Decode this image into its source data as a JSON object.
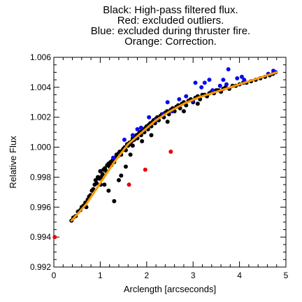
{
  "chart_data": {
    "type": "scatter",
    "title_lines": [
      "Black: High-pass filtered flux.",
      "Red: excluded outliers.",
      "Blue: excluded during thruster fire.",
      "Orange: Correction."
    ],
    "xlabel": "Arclength [arcseconds]",
    "ylabel": "Relative Flux",
    "xlim": [
      0,
      5
    ],
    "ylim": [
      0.992,
      1.006
    ],
    "x_ticks": [
      0,
      1,
      2,
      3,
      4,
      5
    ],
    "x_tick_labels": [
      "0",
      "1",
      "2",
      "3",
      "4",
      "5"
    ],
    "y_ticks": [
      0.992,
      0.994,
      0.996,
      0.998,
      1.0,
      1.002,
      1.004,
      1.006
    ],
    "y_tick_labels": [
      "0.992",
      "0.994",
      "0.996",
      "0.998",
      "1.000",
      "1.002",
      "1.004",
      "1.006"
    ],
    "grid": false,
    "series": [
      {
        "color": "#000000",
        "points": [
          [
            0.38,
            0.9951
          ],
          [
            0.42,
            0.9953
          ],
          [
            0.47,
            0.9954
          ],
          [
            0.52,
            0.9957
          ],
          [
            0.57,
            0.9958
          ],
          [
            0.6,
            0.996
          ],
          [
            0.64,
            0.9961
          ],
          [
            0.68,
            0.9963
          ],
          [
            0.7,
            0.996
          ],
          [
            0.73,
            0.9965
          ],
          [
            0.76,
            0.9967
          ],
          [
            0.79,
            0.9968
          ],
          [
            0.82,
            0.9971
          ],
          [
            0.85,
            0.9972
          ],
          [
            0.88,
            0.9975
          ],
          [
            0.9,
            0.9978
          ],
          [
            0.92,
            0.9976
          ],
          [
            0.95,
            0.998
          ],
          [
            0.98,
            0.9979
          ],
          [
            1.0,
            0.9984
          ],
          [
            1.02,
            0.998
          ],
          [
            1.05,
            0.9982
          ],
          [
            1.07,
            0.9985
          ],
          [
            1.1,
            0.9986
          ],
          [
            1.13,
            0.9984
          ],
          [
            1.15,
            0.9988
          ],
          [
            1.18,
            0.9989
          ],
          [
            1.2,
            0.9987
          ],
          [
            1.22,
            0.999
          ],
          [
            1.24,
            0.9988
          ],
          [
            1.26,
            0.9991
          ],
          [
            1.28,
            0.9992
          ],
          [
            1.3,
            0.999
          ],
          [
            1.33,
            0.9993
          ],
          [
            1.35,
            0.9995
          ],
          [
            1.38,
            0.9994
          ],
          [
            1.4,
            0.9996
          ],
          [
            1.42,
            0.9997
          ],
          [
            1.45,
            0.9995
          ],
          [
            1.48,
            0.9998
          ],
          [
            1.5,
            0.9999
          ],
          [
            1.53,
            1.0
          ],
          [
            1.55,
            0.9998
          ],
          [
            1.58,
            1.0002
          ],
          [
            1.6,
            1.0001
          ],
          [
            1.63,
            1.0003
          ],
          [
            1.65,
            1.0002
          ],
          [
            1.68,
            1.0004
          ],
          [
            1.7,
            1.0006
          ],
          [
            1.73,
            1.0005
          ],
          [
            1.75,
            1.0007
          ],
          [
            1.78,
            1.0008
          ],
          [
            1.8,
            1.0006
          ],
          [
            1.83,
            1.0009
          ],
          [
            1.85,
            1.001
          ],
          [
            1.88,
            1.0008
          ],
          [
            1.9,
            1.0011
          ],
          [
            1.93,
            1.0012
          ],
          [
            1.95,
            1.001
          ],
          [
            1.98,
            1.0013
          ],
          [
            2.0,
            1.0014
          ],
          [
            2.03,
            1.0012
          ],
          [
            2.05,
            1.0015
          ],
          [
            2.08,
            1.0016
          ],
          [
            2.1,
            1.0014
          ],
          [
            2.13,
            1.0017
          ],
          [
            2.15,
            1.0018
          ],
          [
            2.18,
            1.0016
          ],
          [
            2.2,
            1.0019
          ],
          [
            2.23,
            1.002
          ],
          [
            2.26,
            1.0018
          ],
          [
            2.3,
            1.0021
          ],
          [
            2.33,
            1.0022
          ],
          [
            2.37,
            1.002
          ],
          [
            2.4,
            1.0023
          ],
          [
            2.44,
            1.0024
          ],
          [
            2.48,
            1.0022
          ],
          [
            2.52,
            1.0025
          ],
          [
            2.56,
            1.0026
          ],
          [
            2.6,
            1.0024
          ],
          [
            2.64,
            1.0027
          ],
          [
            2.68,
            1.0028
          ],
          [
            2.72,
            1.0026
          ],
          [
            2.76,
            1.0029
          ],
          [
            2.8,
            1.003
          ],
          [
            2.85,
            1.0028
          ],
          [
            2.9,
            1.0031
          ],
          [
            2.95,
            1.0032
          ],
          [
            3.0,
            1.003
          ],
          [
            3.05,
            1.0033
          ],
          [
            3.1,
            1.0034
          ],
          [
            3.15,
            1.0032
          ],
          [
            3.2,
            1.0035
          ],
          [
            3.25,
            1.0035
          ],
          [
            3.3,
            1.0034
          ],
          [
            3.35,
            1.0036
          ],
          [
            3.4,
            1.0037
          ],
          [
            3.45,
            1.0036
          ],
          [
            3.5,
            1.0038
          ],
          [
            3.55,
            1.0038
          ],
          [
            3.6,
            1.0037
          ],
          [
            3.65,
            1.0039
          ],
          [
            3.7,
            1.004
          ],
          [
            3.78,
            1.0039
          ],
          [
            3.85,
            1.0041
          ],
          [
            3.92,
            1.0041
          ],
          [
            4.0,
            1.0042
          ],
          [
            4.08,
            1.0043
          ],
          [
            4.15,
            1.0043
          ],
          [
            4.25,
            1.0044
          ],
          [
            4.35,
            1.0045
          ],
          [
            4.45,
            1.0046
          ],
          [
            4.55,
            1.0047
          ],
          [
            4.65,
            1.0048
          ],
          [
            4.72,
            1.0049
          ],
          [
            0.95,
            0.998
          ],
          [
            1.01,
            0.9975
          ],
          [
            1.09,
            0.9975
          ],
          [
            1.18,
            0.9971
          ],
          [
            1.3,
            0.9964
          ],
          [
            1.45,
            0.9981
          ],
          [
            1.55,
            0.9987
          ],
          [
            1.7,
            1.0001
          ],
          [
            1.9,
            1.0004
          ],
          [
            2.1,
            1.0008
          ],
          [
            2.45,
            1.0017
          ],
          [
            2.8,
            1.0024
          ],
          [
            3.1,
            1.0029
          ],
          [
            1.4,
            0.9978
          ],
          [
            1.65,
            0.9995
          ]
        ]
      },
      {
        "color": "#e8000b",
        "points": [
          [
            0.02,
            0.994
          ],
          [
            1.62,
            0.9975
          ],
          [
            1.97,
            0.9985
          ],
          [
            2.52,
            0.9997
          ]
        ]
      },
      {
        "color": "#0a0aee",
        "points": [
          [
            1.28,
            0.9993
          ],
          [
            1.52,
            1.0005
          ],
          [
            1.7,
            1.0008
          ],
          [
            1.8,
            1.0012
          ],
          [
            1.88,
            1.0013
          ],
          [
            2.05,
            1.002
          ],
          [
            2.2,
            1.0018
          ],
          [
            2.35,
            1.0022
          ],
          [
            2.45,
            1.003
          ],
          [
            2.55,
            1.0024
          ],
          [
            2.7,
            1.0032
          ],
          [
            2.85,
            1.0034
          ],
          [
            3.0,
            1.0031
          ],
          [
            3.05,
            1.0043
          ],
          [
            3.18,
            1.004
          ],
          [
            3.25,
            1.0043
          ],
          [
            3.35,
            1.0045
          ],
          [
            3.42,
            1.0038
          ],
          [
            3.58,
            1.0041
          ],
          [
            3.65,
            1.0045
          ],
          [
            3.72,
            1.0042
          ],
          [
            3.76,
            1.0052
          ],
          [
            3.95,
            1.0046
          ],
          [
            4.05,
            1.0047
          ],
          [
            4.1,
            1.0045
          ],
          [
            4.62,
            1.0049
          ],
          [
            4.73,
            1.0051
          ],
          [
            4.78,
            1.005
          ]
        ]
      }
    ],
    "correction_line": {
      "color": "#ff9900",
      "x": [
        0.38,
        0.7,
        1.0,
        1.3,
        1.6,
        1.9,
        2.2,
        2.5,
        2.8,
        3.1,
        3.4,
        3.7,
        4.0,
        4.3,
        4.6,
        4.8
      ],
      "y": [
        0.9951,
        0.9962,
        0.9976,
        0.999,
        1.0002,
        1.001,
        1.0018,
        1.0024,
        1.0029,
        1.0033,
        1.0036,
        1.0039,
        1.0042,
        1.0045,
        1.0048,
        1.005
      ]
    }
  }
}
